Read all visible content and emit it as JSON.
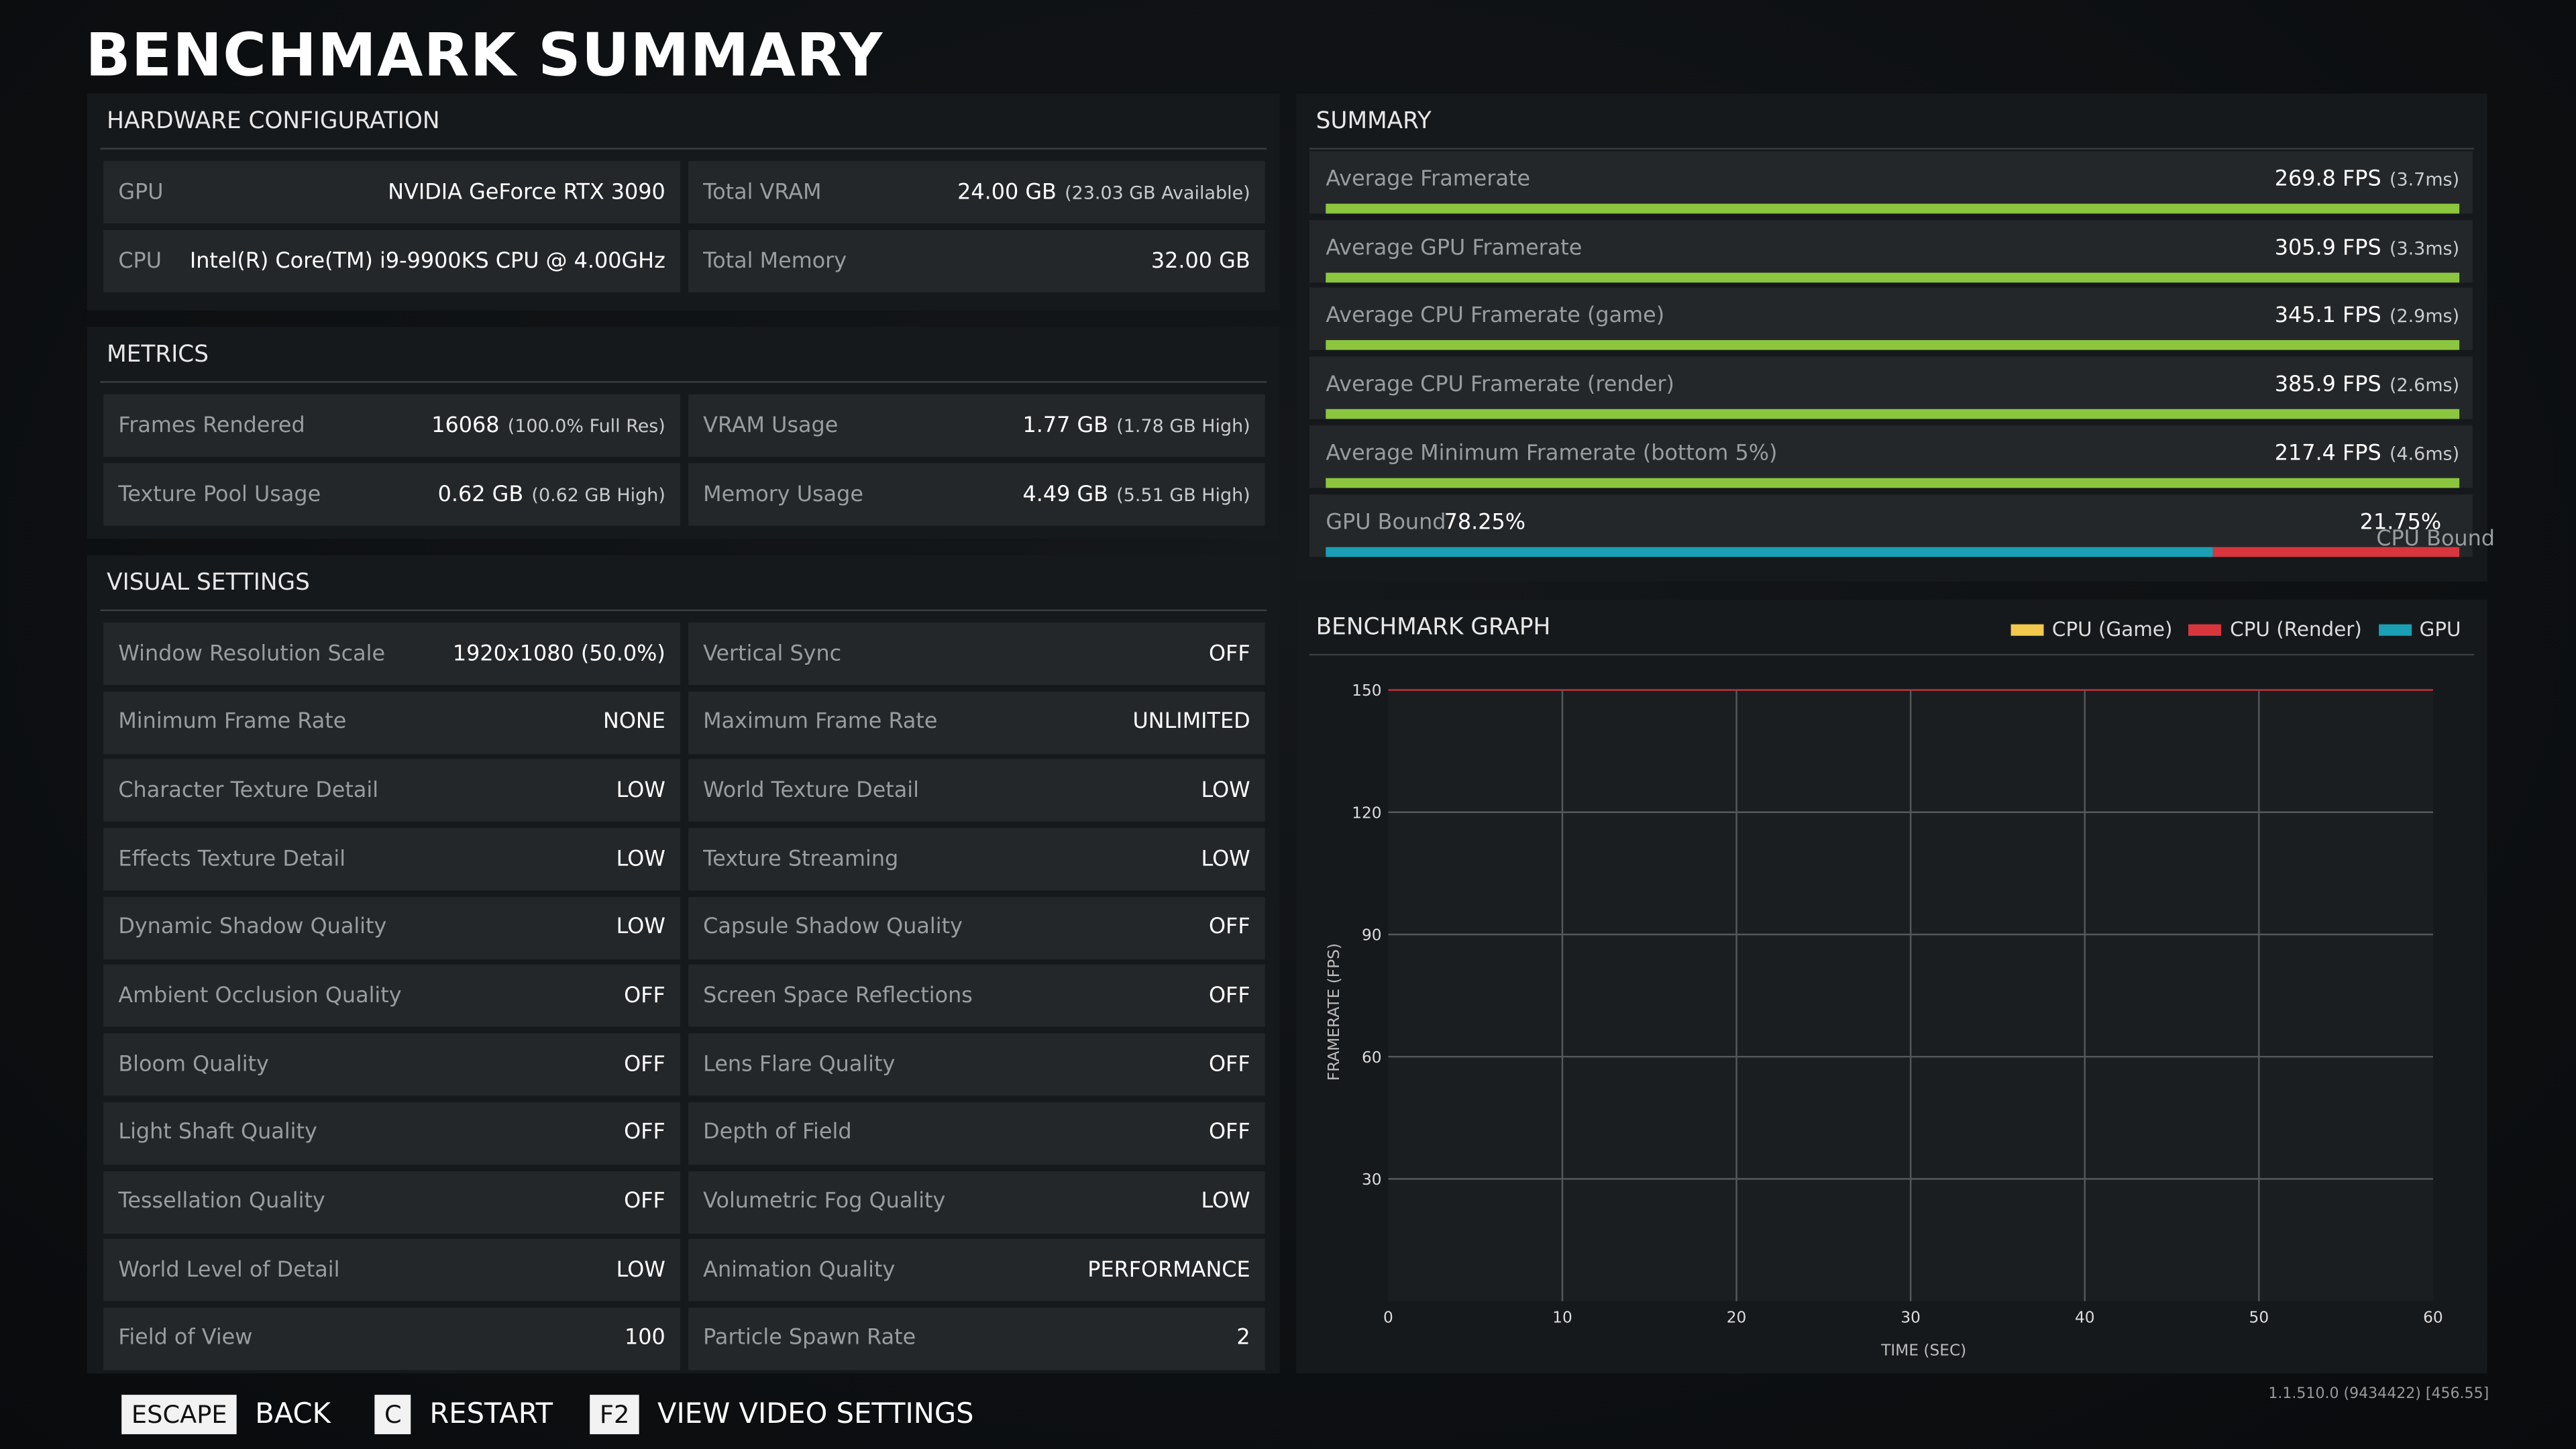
{
  "title": "BENCHMARK SUMMARY",
  "hardware": {
    "title": "HARDWARE CONFIGURATION",
    "cells": [
      {
        "label": "GPU",
        "value": "NVIDIA GeForce RTX 3090"
      },
      {
        "label": "Total VRAM",
        "value": "24.00 GB",
        "note": "(23.03 GB Available)"
      },
      {
        "label": "CPU",
        "value": "Intel(R) Core(TM) i9-9900KS CPU @ 4.00GHz"
      },
      {
        "label": "Total Memory",
        "value": "32.00 GB"
      }
    ]
  },
  "metrics": {
    "title": "METRICS",
    "cells": [
      {
        "label": "Frames Rendered",
        "value": "16068",
        "note": "(100.0% Full Res)"
      },
      {
        "label": "VRAM Usage",
        "value": "1.77 GB",
        "note": "(1.78 GB High)"
      },
      {
        "label": "Texture Pool Usage",
        "value": "0.62 GB",
        "note": "(0.62 GB High)"
      },
      {
        "label": "Memory Usage",
        "value": "4.49 GB",
        "note": "(5.51 GB High)"
      }
    ]
  },
  "visual": {
    "title": "VISUAL SETTINGS",
    "cells": [
      {
        "label": "Window Resolution Scale",
        "value": "1920x1080 (50.0%)"
      },
      {
        "label": "Vertical Sync",
        "value": "OFF"
      },
      {
        "label": "Minimum Frame Rate",
        "value": "NONE"
      },
      {
        "label": "Maximum Frame Rate",
        "value": "UNLIMITED"
      },
      {
        "label": "Character Texture Detail",
        "value": "LOW"
      },
      {
        "label": "World Texture Detail",
        "value": "LOW"
      },
      {
        "label": "Effects Texture Detail",
        "value": "LOW"
      },
      {
        "label": "Texture Streaming",
        "value": "LOW"
      },
      {
        "label": "Dynamic Shadow Quality",
        "value": "LOW"
      },
      {
        "label": "Capsule Shadow Quality",
        "value": "OFF"
      },
      {
        "label": "Ambient Occlusion Quality",
        "value": "OFF"
      },
      {
        "label": "Screen Space Reflections",
        "value": "OFF"
      },
      {
        "label": "Bloom Quality",
        "value": "OFF"
      },
      {
        "label": "Lens Flare Quality",
        "value": "OFF"
      },
      {
        "label": "Light Shaft Quality",
        "value": "OFF"
      },
      {
        "label": "Depth of Field",
        "value": "OFF"
      },
      {
        "label": "Tessellation Quality",
        "value": "OFF"
      },
      {
        "label": "Volumetric Fog Quality",
        "value": "LOW"
      },
      {
        "label": "World Level of Detail",
        "value": "LOW"
      },
      {
        "label": "Animation Quality",
        "value": "PERFORMANCE"
      },
      {
        "label": "Field of View",
        "value": "100"
      },
      {
        "label": "Particle Spawn Rate",
        "value": "2"
      }
    ]
  },
  "summary": {
    "title": "SUMMARY",
    "rows": [
      {
        "label": "Average Framerate",
        "value": "269.8 FPS",
        "note": "(3.7ms)"
      },
      {
        "label": "Average GPU Framerate",
        "value": "305.9 FPS",
        "note": "(3.3ms)"
      },
      {
        "label": "Average CPU Framerate (game)",
        "value": "345.1 FPS",
        "note": "(2.9ms)"
      },
      {
        "label": "Average CPU Framerate (render)",
        "value": "385.9 FPS",
        "note": "(2.6ms)"
      },
      {
        "label": "Average Minimum Framerate (bottom 5%)",
        "value": "217.4 FPS",
        "note": "(4.6ms)"
      }
    ],
    "bound": {
      "labels": [
        "GPU Bound",
        "CPU Bound"
      ],
      "values": [
        78.25,
        21.75
      ],
      "value_labels": [
        "78.25%",
        "21.75%"
      ],
      "colors": [
        "#1a9fb5",
        "#d8353d"
      ]
    }
  },
  "graph": {
    "title": "BENCHMARK GRAPH",
    "x_label": "TIME (SEC)",
    "y_label": "FRAMERATE (FPS)",
    "xlim": [
      0,
      60
    ],
    "xticks": [
      0,
      10,
      20,
      30,
      40,
      50,
      60
    ],
    "ylim": [
      0,
      150
    ],
    "yticks": [
      30,
      60,
      90,
      120,
      150
    ],
    "grid": true,
    "legend": [
      {
        "name": "CPU (Game)",
        "color": "#f2c94c"
      },
      {
        "name": "CPU (Render)",
        "color": "#d8353d"
      },
      {
        "name": "GPU",
        "color": "#1a9fb5"
      }
    ]
  },
  "footer": {
    "actions": [
      {
        "key": "ESCAPE",
        "label": "BACK"
      },
      {
        "key": "C",
        "label": "RESTART"
      },
      {
        "key": "F2",
        "label": "VIEW VIDEO SETTINGS"
      }
    ],
    "version": "1.1.510.0 (9434422) [456.55]"
  }
}
